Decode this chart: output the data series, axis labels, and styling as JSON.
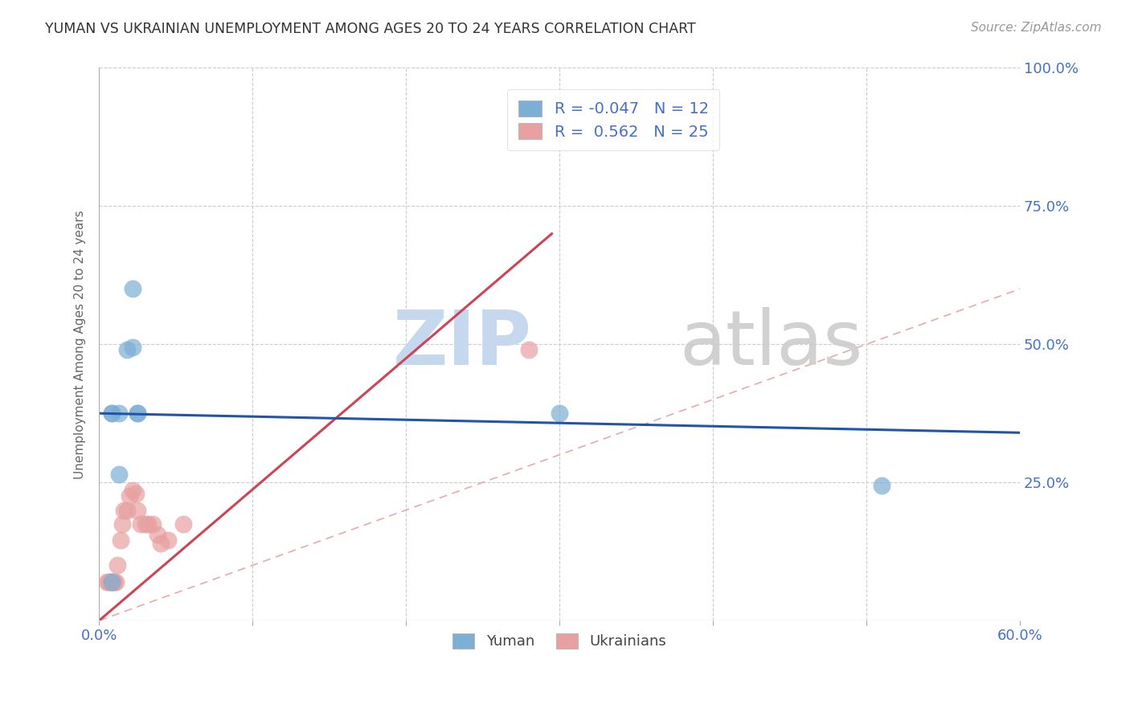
{
  "title": "YUMAN VS UKRAINIAN UNEMPLOYMENT AMONG AGES 20 TO 24 YEARS CORRELATION CHART",
  "source": "Source: ZipAtlas.com",
  "ylabel": "Unemployment Among Ages 20 to 24 years",
  "xlim": [
    0.0,
    0.6
  ],
  "ylim": [
    0.0,
    1.0
  ],
  "xticks": [
    0.0,
    0.1,
    0.2,
    0.3,
    0.4,
    0.5,
    0.6
  ],
  "xtick_labels": [
    "0.0%",
    "",
    "",
    "",
    "",
    "",
    "60.0%"
  ],
  "ytick_labels": [
    "",
    "25.0%",
    "50.0%",
    "75.0%",
    "100.0%"
  ],
  "yticks": [
    0.0,
    0.25,
    0.5,
    0.75,
    1.0
  ],
  "yuman_r": -0.047,
  "yuman_n": 12,
  "ukrainian_r": 0.562,
  "ukrainian_n": 25,
  "yuman_color": "#7bafd4",
  "ukrainian_color": "#e8a0a0",
  "yuman_edge_color": "#5588bb",
  "ukrainian_edge_color": "#cc7777",
  "yuman_line_color": "#2255aa",
  "ukrainian_line_color": "#cc4455",
  "diag_line_color": "#e8aaaa",
  "yuman_line_x0": 0.0,
  "yuman_line_y0": 0.375,
  "yuman_line_x1": 0.6,
  "yuman_line_y1": 0.34,
  "ukr_line_x0": 0.0,
  "ukr_line_y0": 0.0,
  "ukr_line_x1": 0.295,
  "ukr_line_y1": 0.7,
  "yuman_points_x": [
    0.008,
    0.008,
    0.008,
    0.013,
    0.018,
    0.022,
    0.022,
    0.025,
    0.025,
    0.3,
    0.51,
    0.013
  ],
  "yuman_points_y": [
    0.375,
    0.375,
    0.07,
    0.265,
    0.49,
    0.495,
    0.6,
    0.375,
    0.375,
    0.375,
    0.245,
    0.375
  ],
  "ukrainian_points_x": [
    0.005,
    0.006,
    0.007,
    0.008,
    0.009,
    0.01,
    0.011,
    0.012,
    0.014,
    0.015,
    0.016,
    0.018,
    0.02,
    0.022,
    0.024,
    0.025,
    0.027,
    0.03,
    0.032,
    0.035,
    0.038,
    0.04,
    0.045,
    0.055,
    0.28
  ],
  "ukrainian_points_y": [
    0.07,
    0.07,
    0.07,
    0.07,
    0.07,
    0.07,
    0.07,
    0.1,
    0.145,
    0.175,
    0.2,
    0.2,
    0.225,
    0.235,
    0.23,
    0.2,
    0.175,
    0.175,
    0.175,
    0.175,
    0.155,
    0.14,
    0.145,
    0.175,
    0.49
  ],
  "background_color": "#ffffff",
  "grid_color": "#cccccc",
  "legend_text_color": "#4472c4",
  "axis_text_color": "#4472c4",
  "ylabel_color": "#666666"
}
